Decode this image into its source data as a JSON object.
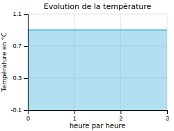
{
  "chart_data": {
    "type": "area",
    "title": "Evolution de la température",
    "x_label": "heure par heure",
    "y_label": "Température en °C",
    "x": [
      0,
      3
    ],
    "values": [
      0.9,
      0.9
    ],
    "color": "#55bbdd",
    "xlim": [
      0,
      3
    ],
    "ylim": [
      -0.1,
      1.1
    ],
    "xticks": [
      0,
      1,
      2,
      3
    ],
    "yticks": [
      -0.1,
      0.3,
      0.7,
      1.1
    ],
    "grid": true
  }
}
